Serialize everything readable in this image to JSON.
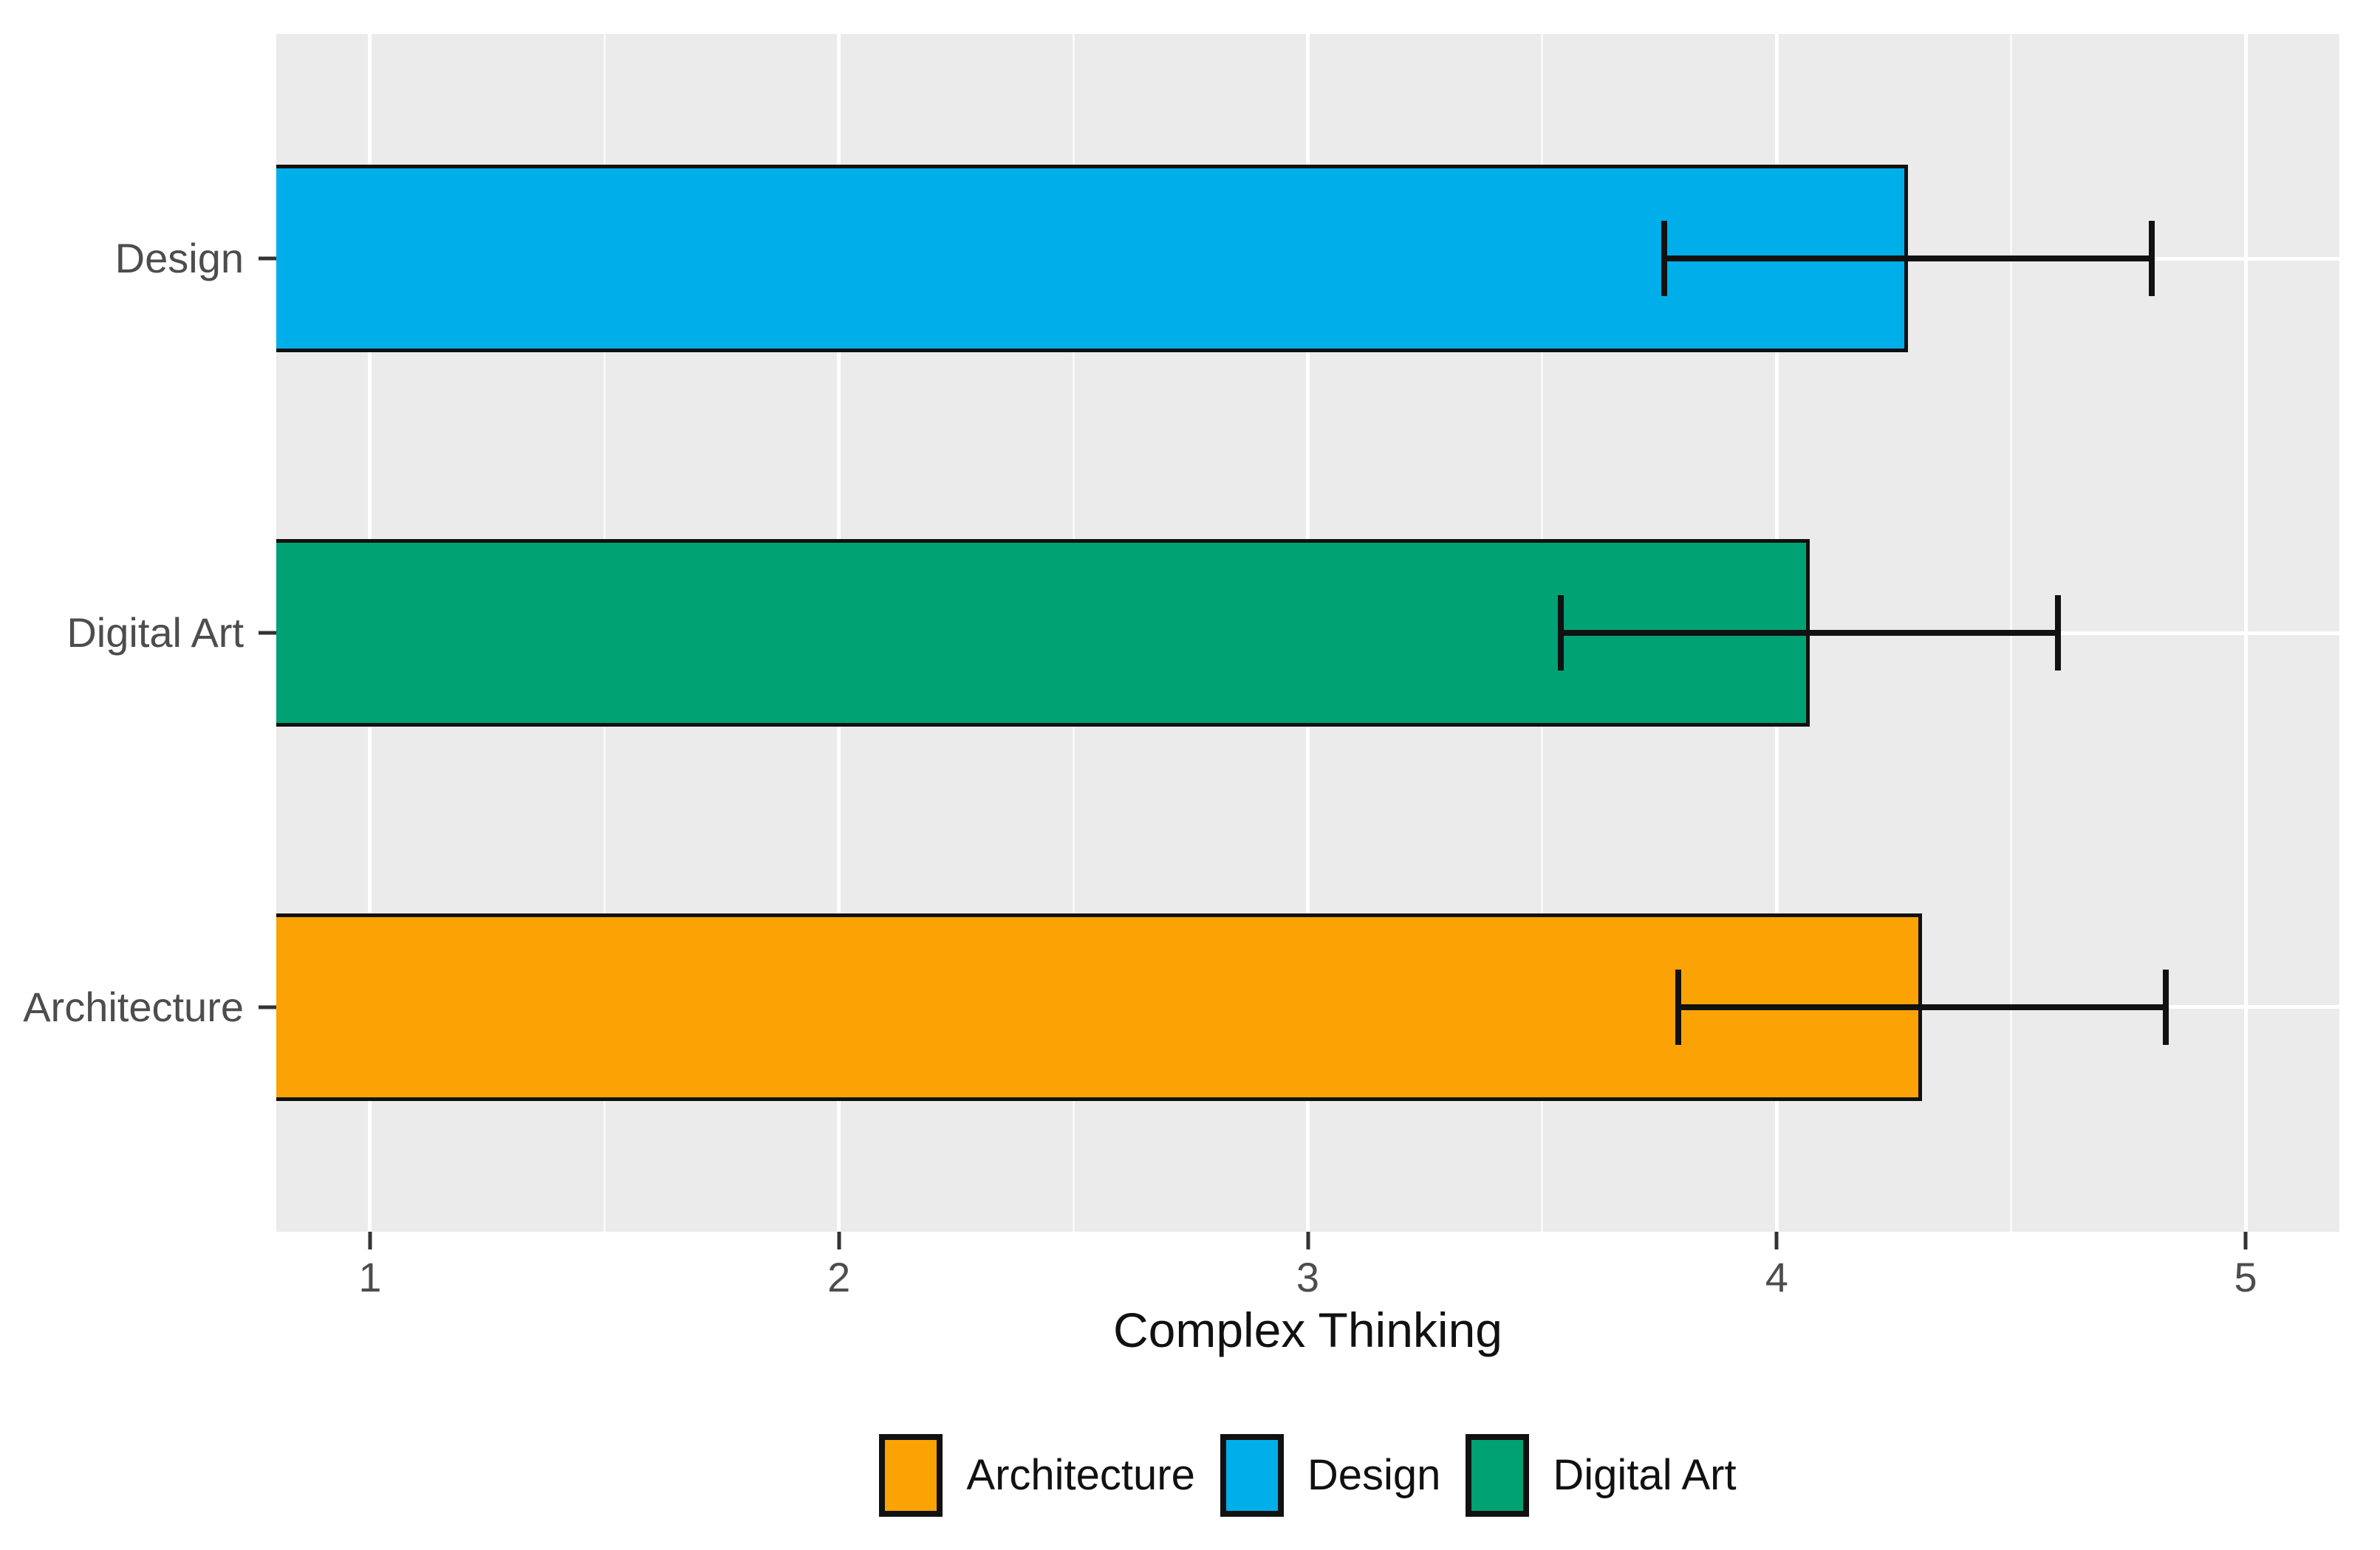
{
  "chart_data": {
    "type": "bar",
    "orientation": "horizontal",
    "title": "",
    "xlabel": "Complex Thinking",
    "ylabel": "",
    "categories_top_to_bottom": [
      "Design",
      "Digital Art",
      "Architecture"
    ],
    "series": [
      {
        "name": "Design",
        "value": 4.28,
        "error_low": 3.76,
        "error_high": 4.8,
        "color": "#00AFEA"
      },
      {
        "name": "Digital Art",
        "value": 4.07,
        "error_low": 3.54,
        "error_high": 4.6,
        "color": "#00A173"
      },
      {
        "name": "Architecture",
        "value": 4.31,
        "error_low": 3.79,
        "error_high": 4.83,
        "color": "#FBA304"
      }
    ],
    "xlim": [
      0.8,
      5.2
    ],
    "xticks": [
      1,
      2,
      3,
      4,
      5
    ],
    "xticks_minor": [
      1.5,
      2.5,
      3.5,
      4.5
    ],
    "y_domain": [
      0.4,
      3.6
    ],
    "bar_thickness": 0.5,
    "cap_thickness": 0.2,
    "grid": "on",
    "panel_background": "#EBEBEB",
    "gridline_color": "#ffffff",
    "bar_border_color": "#111111",
    "errorbar_color": "#111111",
    "axis_text_color": "#4D4D4D",
    "axis_title_color": "#111111",
    "legend": {
      "position": "bottom",
      "entries": [
        {
          "label": "Architecture",
          "color": "#FBA304"
        },
        {
          "label": "Design",
          "color": "#00AFEA"
        },
        {
          "label": "Digital Art",
          "color": "#00A173"
        }
      ]
    }
  }
}
